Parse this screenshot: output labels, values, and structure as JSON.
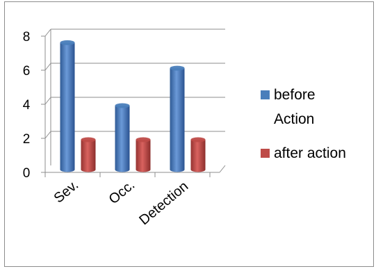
{
  "chart_data": {
    "type": "bar",
    "categories": [
      "Sev.",
      "Occ.",
      "Detection"
    ],
    "series": [
      {
        "name": "before Action",
        "values": [
          7.7,
          4.0,
          6.2
        ],
        "color": "#4a7ebb"
      },
      {
        "name": "after action",
        "values": [
          2.0,
          2.0,
          2.0
        ],
        "color": "#be4b48"
      }
    ],
    "title": "",
    "xlabel": "",
    "ylabel": "",
    "ylim": [
      0,
      8
    ],
    "yticks": [
      0,
      2,
      4,
      6,
      8
    ],
    "grid": true,
    "legend": "right",
    "style": "3d-cylinder"
  },
  "legend": {
    "before_line1": "before",
    "before_line2": "Action",
    "after": "after action"
  }
}
